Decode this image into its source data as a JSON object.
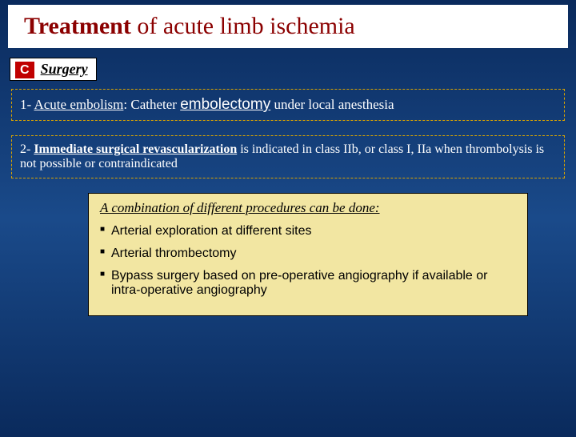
{
  "title": {
    "bold": "Treatment",
    "rest": " of acute limb ischemia"
  },
  "section": {
    "letter": "C",
    "name": "Surgery"
  },
  "box1": {
    "prefix": "1- ",
    "underlined": "Acute embolism",
    "mid": ": Catheter ",
    "emph": "embolectomy",
    "suffix": " under local anesthesia"
  },
  "box2": {
    "prefix": "2- ",
    "underlined": "Immediate surgical revascularization",
    "rest": " is indicated in class IIb, or class I, IIa when thrombolysis is not possible or contraindicated"
  },
  "yellow": {
    "heading": "A combination of different procedures can be done:",
    "items": [
      "Arterial exploration at different sites",
      "Arterial thrombectomy",
      "Bypass surgery based on pre-operative angiography if available or intra-operative angiography"
    ]
  },
  "colors": {
    "bg_top": "#0a2a5c",
    "bg_mid": "#1a4a8a",
    "title_color": "#8b0000",
    "section_c_bg": "#c00000",
    "dashed_border": "#d9a300",
    "yellow_bg": "#f2e6a2"
  }
}
